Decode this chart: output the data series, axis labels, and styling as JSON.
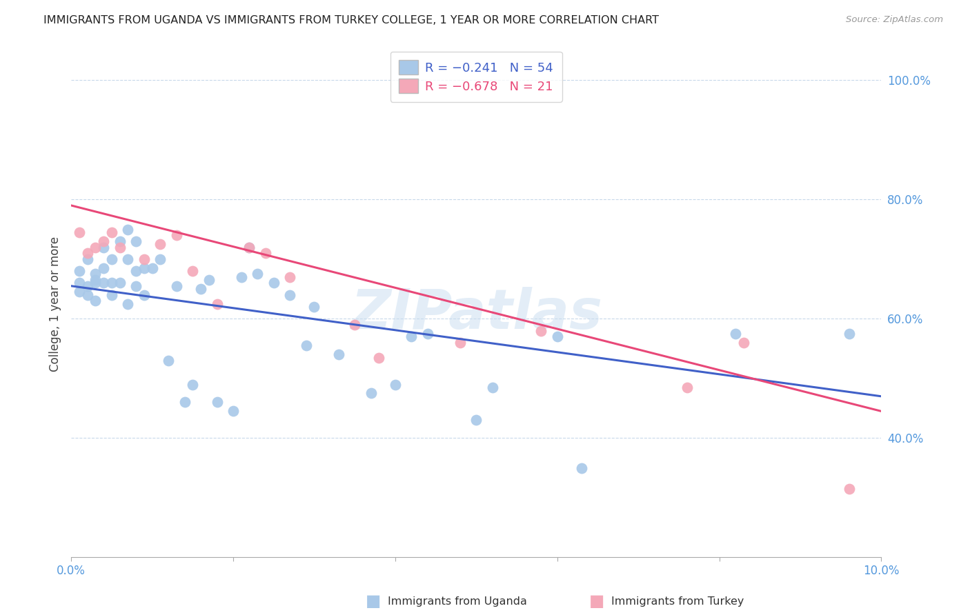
{
  "title": "IMMIGRANTS FROM UGANDA VS IMMIGRANTS FROM TURKEY COLLEGE, 1 YEAR OR MORE CORRELATION CHART",
  "source": "Source: ZipAtlas.com",
  "ylabel": "College, 1 year or more",
  "xlim": [
    0.0,
    0.1
  ],
  "ylim": [
    0.2,
    1.05
  ],
  "x_ticks": [
    0.0,
    0.02,
    0.04,
    0.06,
    0.08,
    0.1
  ],
  "x_tick_labels": [
    "0.0%",
    "",
    "",
    "",
    "",
    "10.0%"
  ],
  "y_ticks": [
    0.4,
    0.6,
    0.8,
    1.0
  ],
  "y_tick_labels": [
    "40.0%",
    "60.0%",
    "80.0%",
    "100.0%"
  ],
  "uganda_color": "#a8c8e8",
  "turkey_color": "#f4a8b8",
  "uganda_line_color": "#4060c8",
  "turkey_line_color": "#e84878",
  "background_color": "#ffffff",
  "watermark": "ZIPatlas",
  "uganda_line_x0": 0.0,
  "uganda_line_y0": 0.655,
  "uganda_line_x1": 0.1,
  "uganda_line_y1": 0.47,
  "turkey_line_x0": 0.0,
  "turkey_line_y0": 0.79,
  "turkey_line_x1": 0.1,
  "turkey_line_y1": 0.445,
  "uganda_x": [
    0.001,
    0.001,
    0.001,
    0.002,
    0.002,
    0.002,
    0.003,
    0.003,
    0.003,
    0.003,
    0.004,
    0.004,
    0.004,
    0.005,
    0.005,
    0.005,
    0.006,
    0.006,
    0.007,
    0.007,
    0.007,
    0.008,
    0.008,
    0.008,
    0.009,
    0.009,
    0.01,
    0.011,
    0.012,
    0.013,
    0.014,
    0.015,
    0.016,
    0.017,
    0.018,
    0.02,
    0.021,
    0.022,
    0.023,
    0.025,
    0.027,
    0.029,
    0.03,
    0.033,
    0.037,
    0.04,
    0.042,
    0.044,
    0.05,
    0.052,
    0.06,
    0.063,
    0.082,
    0.096
  ],
  "uganda_y": [
    0.645,
    0.66,
    0.68,
    0.64,
    0.655,
    0.7,
    0.66,
    0.675,
    0.63,
    0.665,
    0.72,
    0.685,
    0.66,
    0.66,
    0.7,
    0.64,
    0.73,
    0.66,
    0.75,
    0.7,
    0.625,
    0.73,
    0.68,
    0.655,
    0.685,
    0.64,
    0.685,
    0.7,
    0.53,
    0.655,
    0.46,
    0.49,
    0.65,
    0.665,
    0.46,
    0.445,
    0.67,
    0.72,
    0.675,
    0.66,
    0.64,
    0.555,
    0.62,
    0.54,
    0.475,
    0.49,
    0.57,
    0.575,
    0.43,
    0.485,
    0.57,
    0.35,
    0.575,
    0.575
  ],
  "turkey_x": [
    0.001,
    0.002,
    0.003,
    0.004,
    0.005,
    0.006,
    0.009,
    0.011,
    0.013,
    0.015,
    0.018,
    0.022,
    0.024,
    0.027,
    0.035,
    0.038,
    0.048,
    0.058,
    0.076,
    0.083,
    0.096
  ],
  "turkey_y": [
    0.745,
    0.71,
    0.72,
    0.73,
    0.745,
    0.72,
    0.7,
    0.725,
    0.74,
    0.68,
    0.625,
    0.72,
    0.71,
    0.67,
    0.59,
    0.535,
    0.56,
    0.58,
    0.485,
    0.56,
    0.315
  ]
}
